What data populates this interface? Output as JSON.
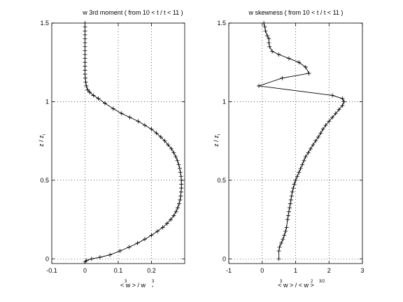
{
  "chart_data": [
    {
      "type": "line",
      "title": "w 3rd moment ( from 10 < t / t  < 11 )",
      "title_sub": "*",
      "xlabel": "< w  > / w",
      "xlabel_sup": "3",
      "xlabel_sub_sup": "3",
      "xlabel_sub": "*",
      "ylabel": "z / z",
      "ylabel_sub": "i",
      "xlim": [
        -0.1,
        0.3
      ],
      "ylim": [
        -0.03,
        1.5
      ],
      "xticks": [
        -0.1,
        0,
        0.1,
        0.2
      ],
      "yticks": [
        0,
        0.5,
        1,
        1.5
      ],
      "grid": true,
      "marker": "+",
      "series": [
        {
          "x": [
            0,
            0,
            0,
            0,
            0,
            0,
            0,
            0,
            0,
            0,
            0,
            0,
            0,
            0,
            0.001,
            0.002,
            0.004,
            0.008,
            0.014,
            0.025,
            0.04,
            0.06,
            0.085,
            0.11,
            0.135,
            0.16,
            0.18,
            0.2,
            0.215,
            0.228,
            0.24,
            0.25,
            0.26,
            0.267,
            0.273,
            0.278,
            0.282,
            0.285,
            0.287,
            0.289,
            0.29,
            0.29,
            0.29,
            0.289,
            0.288,
            0.286,
            0.283,
            0.279,
            0.274,
            0.267,
            0.258,
            0.247,
            0.234,
            0.218,
            0.2,
            0.18,
            0.158,
            0.133,
            0.105,
            0.075,
            0.045,
            0.02,
            0.005,
            0
          ],
          "y": [
            1.5,
            1.475,
            1.45,
            1.425,
            1.4,
            1.375,
            1.35,
            1.325,
            1.3,
            1.275,
            1.25,
            1.225,
            1.2,
            1.175,
            1.15,
            1.125,
            1.1,
            1.075,
            1.06,
            1.04,
            1.02,
            0.99,
            0.955,
            0.925,
            0.9,
            0.875,
            0.85,
            0.825,
            0.8,
            0.775,
            0.75,
            0.725,
            0.7,
            0.675,
            0.65,
            0.625,
            0.6,
            0.575,
            0.55,
            0.525,
            0.5,
            0.475,
            0.45,
            0.425,
            0.4,
            0.375,
            0.35,
            0.325,
            0.3,
            0.275,
            0.25,
            0.225,
            0.2,
            0.175,
            0.15,
            0.125,
            0.1,
            0.075,
            0.05,
            0.025,
            0.01,
            0,
            -0.01,
            -0.02
          ]
        }
      ]
    },
    {
      "type": "line",
      "title": "w skewness ( from 10 < t / t  < 11 )",
      "title_sub": "*",
      "xlabel": "< w  > / < w  >",
      "xlabel_sup": "3",
      "xlabel_sup2": "2",
      "xlabel_sup3": "3/2",
      "ylabel": "z / z",
      "ylabel_sub": "i",
      "xlim": [
        -1,
        3
      ],
      "ylim": [
        -0.03,
        1.5
      ],
      "xticks": [
        -1,
        0,
        1,
        2,
        3
      ],
      "yticks": [
        0,
        0.5,
        1,
        1.5
      ],
      "grid": true,
      "marker": "+",
      "series": [
        {
          "x": [
            0.05,
            0.08,
            0.1,
            0.15,
            0.2,
            0.2,
            0.22,
            0.3,
            0.5,
            0.8,
            1.1,
            1.3,
            1.4,
            0.6,
            -0.1,
            2.1,
            2.4,
            2.45,
            2.4,
            2.3,
            2.2,
            2.1,
            2.0,
            1.9,
            1.82,
            1.75,
            1.68,
            1.6,
            1.52,
            1.45,
            1.38,
            1.3,
            1.25,
            1.2,
            1.15,
            1.1,
            1.05,
            1.0,
            0.96,
            0.93,
            0.9,
            0.88,
            0.86,
            0.84,
            0.82,
            0.8,
            0.78,
            0.76,
            0.73,
            0.7,
            0.66,
            0.62,
            0.57,
            0.52,
            0.5,
            0.5
          ],
          "y": [
            1.5,
            1.475,
            1.45,
            1.42,
            1.4,
            1.375,
            1.35,
            1.32,
            1.3,
            1.275,
            1.25,
            1.22,
            1.18,
            1.15,
            1.1,
            1.04,
            1.02,
            1.0,
            0.975,
            0.95,
            0.925,
            0.9,
            0.875,
            0.85,
            0.825,
            0.8,
            0.775,
            0.75,
            0.725,
            0.7,
            0.675,
            0.65,
            0.625,
            0.6,
            0.575,
            0.55,
            0.525,
            0.5,
            0.475,
            0.45,
            0.425,
            0.4,
            0.375,
            0.35,
            0.325,
            0.3,
            0.275,
            0.25,
            0.2,
            0.175,
            0.15,
            0.125,
            0.1,
            0.075,
            0.05,
            0.0
          ]
        }
      ]
    }
  ]
}
